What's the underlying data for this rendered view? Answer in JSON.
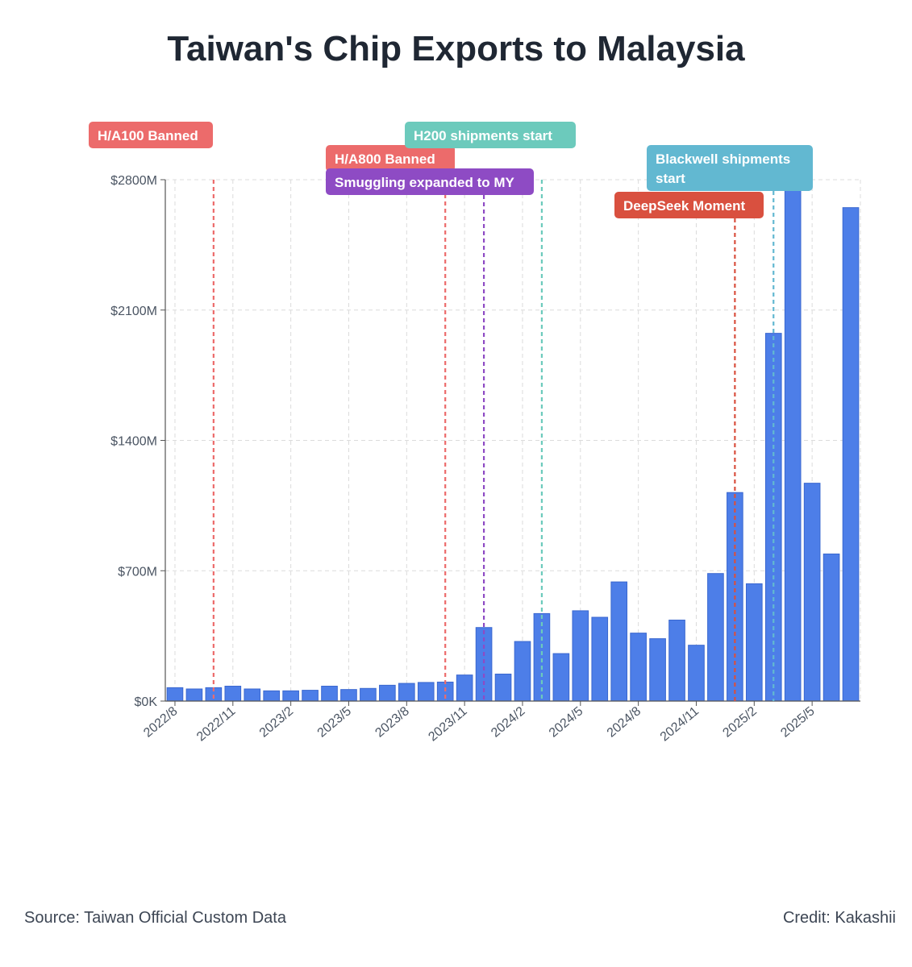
{
  "chart_data": {
    "type": "bar",
    "title": "Taiwan's Chip Exports to Malaysia",
    "xlabel": "",
    "ylabel": "",
    "ylim": [
      0,
      2800
    ],
    "y_ticks": [
      "$0K",
      "$700M",
      "$1400M",
      "$2100M",
      "$2800M"
    ],
    "y_tick_values": [
      0,
      700,
      1400,
      2100,
      2800
    ],
    "categories": [
      "2022/8",
      "2022/9",
      "2022/10",
      "2022/11",
      "2022/12",
      "2023/1",
      "2023/2",
      "2023/3",
      "2023/4",
      "2023/5",
      "2023/6",
      "2023/7",
      "2023/8",
      "2023/9",
      "2023/10",
      "2023/11",
      "2023/12",
      "2024/1",
      "2024/2",
      "2024/3",
      "2024/4",
      "2024/5",
      "2024/6",
      "2024/7",
      "2024/8",
      "2024/9",
      "2024/10",
      "2024/11",
      "2024/12",
      "2025/1",
      "2025/2",
      "2025/3",
      "2025/4",
      "2025/5",
      "2025/6",
      "2025/7"
    ],
    "x_tick_labels": [
      "2022/8",
      "2022/11",
      "2023/2",
      "2023/5",
      "2023/8",
      "2023/11",
      "2024/2",
      "2024/5",
      "2024/8",
      "2024/11",
      "2025/2",
      "2025/5"
    ],
    "values": [
      72,
      65,
      72,
      80,
      65,
      55,
      55,
      58,
      80,
      62,
      68,
      85,
      95,
      100,
      102,
      140,
      395,
      145,
      320,
      470,
      255,
      485,
      450,
      640,
      365,
      335,
      435,
      300,
      685,
      1120,
      630,
      1975,
      2800,
      1170,
      790,
      2650
    ],
    "grid": true,
    "legend": "none",
    "bar_color": "#4d7ee8",
    "annotations": [
      {
        "label": "H/A100 Banned",
        "at": "2022/10",
        "color": "#ec6b6b"
      },
      {
        "label": "H/A800 Banned",
        "at": "2023/10",
        "color": "#ec6b6b"
      },
      {
        "label": "Smuggling expanded to MY",
        "at": "2023/12",
        "color": "#8e4bc4"
      },
      {
        "label": "H200 shipments start",
        "at": "2024/3",
        "color": "#6ccabc"
      },
      {
        "label": "Blackwell shipments start",
        "at": "2025/3",
        "color": "#62b8d1"
      },
      {
        "label": "DeepSeek Moment",
        "at": "2025/1",
        "color": "#d9503f"
      }
    ]
  },
  "footer": {
    "source": "Source: Taiwan Official Custom Data",
    "credit": "Credit: Kakashii"
  }
}
